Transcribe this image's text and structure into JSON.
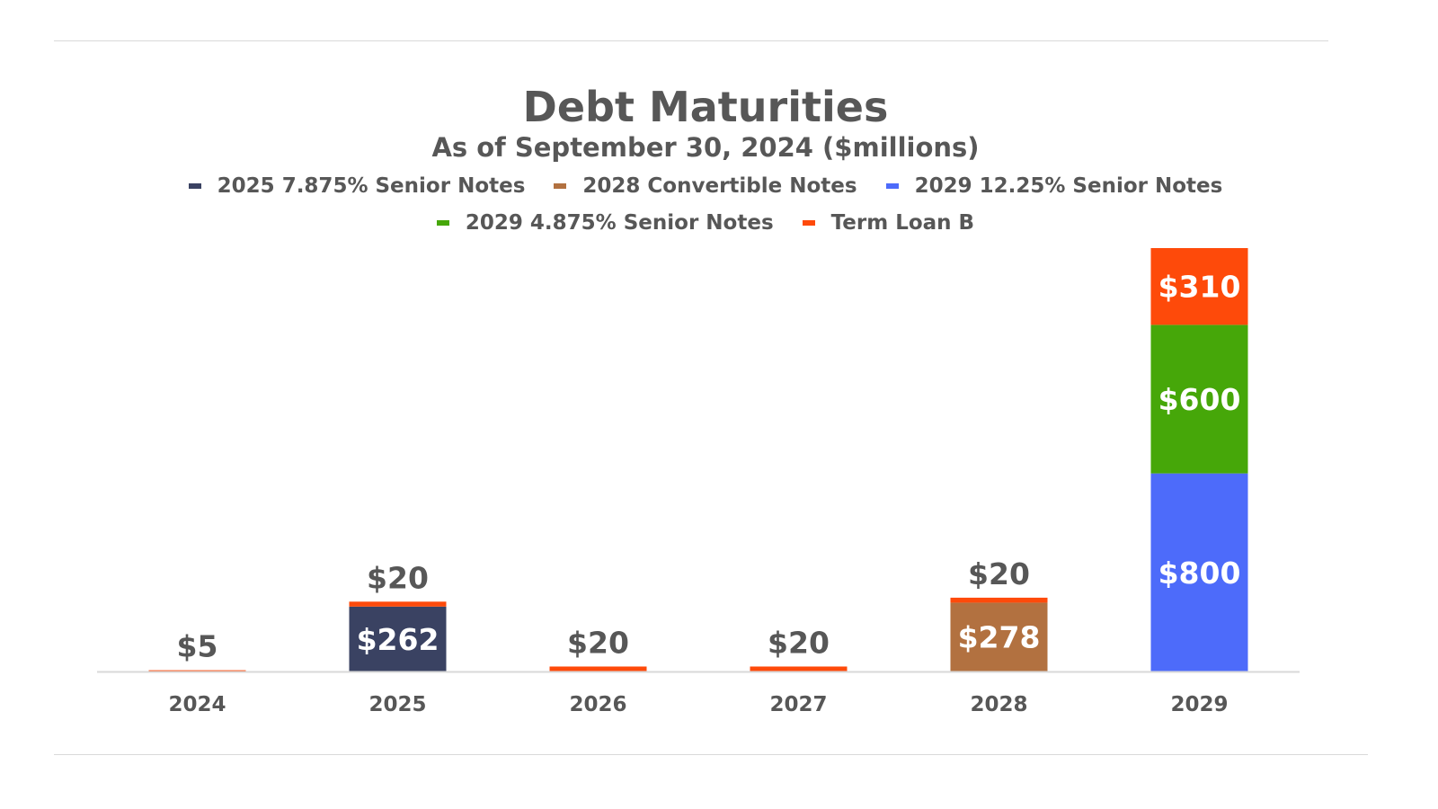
{
  "chart_data": {
    "type": "bar",
    "stacked": true,
    "title": "Debt Maturities",
    "subtitle": "As of September 30, 2024 ($millions)",
    "xlabel": "",
    "ylabel": "",
    "categories": [
      "2024",
      "2025",
      "2026",
      "2027",
      "2028",
      "2029"
    ],
    "series": [
      {
        "name": "2025 7.875% Senior Notes",
        "color": "#3a4262",
        "values": [
          0,
          262,
          0,
          0,
          0,
          0
        ]
      },
      {
        "name": "2028 Convertible Notes",
        "color": "#b27140",
        "values": [
          0,
          0,
          0,
          0,
          278,
          0
        ]
      },
      {
        "name": "2029 12.25% Senior Notes",
        "color": "#4d6bfa",
        "values": [
          0,
          0,
          0,
          0,
          0,
          800
        ]
      },
      {
        "name": "2029 4.875% Senior Notes",
        "color": "#46a709",
        "values": [
          0,
          0,
          0,
          0,
          0,
          600
        ]
      },
      {
        "name": "Term Loan B",
        "color": "#fe4a0a",
        "values": [
          5,
          20,
          20,
          20,
          20,
          310
        ]
      }
    ],
    "data_labels": [
      {
        "category": "2024",
        "series": "Term Loan B",
        "text": "$5",
        "placement": "above"
      },
      {
        "category": "2025",
        "series": "2025 7.875% Senior Notes",
        "text": "$262",
        "placement": "inside"
      },
      {
        "category": "2025",
        "series": "Term Loan B",
        "text": "$20",
        "placement": "above"
      },
      {
        "category": "2026",
        "series": "Term Loan B",
        "text": "$20",
        "placement": "above"
      },
      {
        "category": "2027",
        "series": "Term Loan B",
        "text": "$20",
        "placement": "above"
      },
      {
        "category": "2028",
        "series": "2028 Convertible Notes",
        "text": "$278",
        "placement": "inside"
      },
      {
        "category": "2028",
        "series": "Term Loan B",
        "text": "$20",
        "placement": "above"
      },
      {
        "category": "2029",
        "series": "2029 12.25% Senior Notes",
        "text": "$800",
        "placement": "inside"
      },
      {
        "category": "2029",
        "series": "2029 4.875% Senior Notes",
        "text": "$600",
        "placement": "inside"
      },
      {
        "category": "2029",
        "series": "Term Loan B",
        "text": "$310",
        "placement": "inside"
      }
    ],
    "ylim": [
      0,
      1710
    ],
    "grid": false,
    "legend_position": "top",
    "label_colors": {
      "outside": "#575757",
      "inside": "#ffffff"
    }
  }
}
